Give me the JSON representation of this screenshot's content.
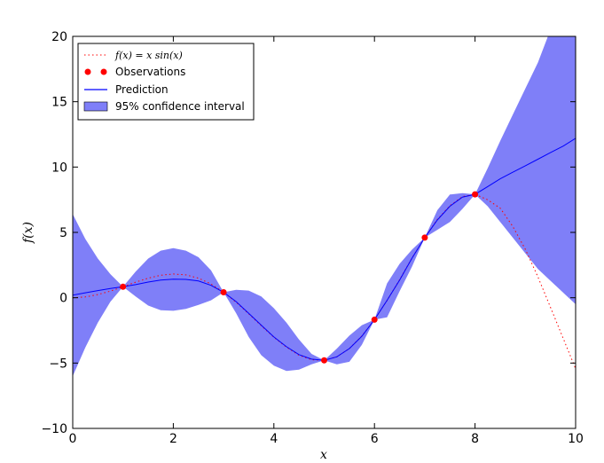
{
  "chart_data": {
    "type": "line",
    "title": "",
    "xlabel": "x",
    "ylabel": "f(x)",
    "xlim": [
      0,
      10
    ],
    "ylim": [
      -10,
      20
    ],
    "xticks": [
      0,
      2,
      4,
      6,
      8,
      10
    ],
    "yticks": [
      -10,
      -5,
      0,
      5,
      10,
      15,
      20
    ],
    "grid": false,
    "legend_position": "top-left",
    "colors": {
      "true_function": "#ff0000",
      "observations": "#ff0000",
      "prediction": "#0000ff",
      "confidence_fill": "#7f7ff8"
    },
    "series": [
      {
        "name": "f(x) = x sin(x)",
        "style": "dotted-red-line",
        "x": [
          0,
          0.25,
          0.5,
          0.75,
          1,
          1.25,
          1.5,
          1.75,
          2,
          2.25,
          2.5,
          2.75,
          3,
          3.25,
          3.5,
          3.75,
          4,
          4.25,
          4.5,
          4.75,
          5,
          5.25,
          5.5,
          5.75,
          6,
          6.25,
          6.5,
          6.75,
          7,
          7.25,
          7.5,
          7.75,
          8,
          8.25,
          8.5,
          8.75,
          9,
          9.25,
          9.5,
          9.75,
          10
        ],
        "y": [
          0,
          0.06,
          0.24,
          0.51,
          0.84,
          1.19,
          1.5,
          1.72,
          1.82,
          1.75,
          1.5,
          1.05,
          0.42,
          -0.35,
          -1.23,
          -2.15,
          -3.03,
          -3.78,
          -4.4,
          -4.75,
          -4.79,
          -4.52,
          -3.89,
          -2.92,
          -1.68,
          -0.21,
          1.39,
          3.06,
          4.6,
          6.0,
          7.04,
          7.74,
          7.91,
          7.5,
          6.85,
          5.46,
          3.71,
          1.59,
          -0.72,
          -3.08,
          -5.44
        ]
      },
      {
        "name": "Observations",
        "style": "red-dots",
        "x": [
          1,
          3,
          5,
          6,
          7,
          8
        ],
        "y": [
          0.84,
          0.42,
          -4.79,
          -1.68,
          4.6,
          7.91
        ]
      },
      {
        "name": "Prediction",
        "style": "blue-line",
        "x": [
          0,
          0.25,
          0.5,
          0.75,
          1,
          1.25,
          1.5,
          1.75,
          2,
          2.25,
          2.5,
          2.75,
          3,
          3.25,
          3.5,
          3.75,
          4,
          4.25,
          4.5,
          4.75,
          5,
          5.25,
          5.5,
          5.75,
          6,
          6.25,
          6.5,
          6.75,
          7,
          7.25,
          7.5,
          7.75,
          8,
          8.25,
          8.5,
          8.75,
          9,
          9.25,
          9.5,
          9.75,
          10
        ],
        "y": [
          0.2,
          0.38,
          0.55,
          0.71,
          0.84,
          1.0,
          1.2,
          1.35,
          1.42,
          1.4,
          1.28,
          0.95,
          0.42,
          -0.3,
          -1.2,
          -2.1,
          -3.0,
          -3.75,
          -4.35,
          -4.7,
          -4.79,
          -4.52,
          -3.89,
          -2.95,
          -1.68,
          -0.2,
          1.35,
          3.05,
          4.6,
          5.95,
          7.0,
          7.7,
          7.91,
          8.5,
          9.1,
          9.6,
          10.1,
          10.6,
          11.1,
          11.6,
          12.2
        ]
      },
      {
        "name": "95% confidence interval",
        "style": "blue-band",
        "x": [
          0,
          0.25,
          0.5,
          0.75,
          1,
          1.25,
          1.5,
          1.75,
          2,
          2.25,
          2.5,
          2.75,
          3,
          3.25,
          3.5,
          3.75,
          4,
          4.25,
          4.5,
          4.75,
          5,
          5.25,
          5.5,
          5.75,
          6,
          6.25,
          6.5,
          6.75,
          7,
          7.25,
          7.5,
          7.75,
          8,
          8.25,
          8.5,
          8.75,
          9,
          9.25,
          9.5,
          9.75,
          10
        ],
        "lower": [
          -6.0,
          -3.8,
          -1.9,
          -0.3,
          0.84,
          0.1,
          -0.6,
          -0.95,
          -1.0,
          -0.85,
          -0.55,
          -0.2,
          0.42,
          -1.2,
          -3.0,
          -4.4,
          -5.2,
          -5.6,
          -5.5,
          -5.1,
          -4.79,
          -5.1,
          -4.9,
          -3.6,
          -1.68,
          -1.5,
          0.5,
          2.4,
          4.6,
          5.2,
          5.8,
          6.8,
          7.91,
          7.0,
          5.8,
          4.6,
          3.4,
          2.2,
          1.3,
          0.4,
          -0.5
        ],
        "upper": [
          6.4,
          4.5,
          3.0,
          1.8,
          0.84,
          2.0,
          3.0,
          3.6,
          3.8,
          3.6,
          3.1,
          2.1,
          0.42,
          0.6,
          0.55,
          0.1,
          -0.8,
          -1.9,
          -3.2,
          -4.3,
          -4.79,
          -3.9,
          -2.9,
          -2.1,
          -1.68,
          1.1,
          2.6,
          3.7,
          4.6,
          6.7,
          7.9,
          8.0,
          7.91,
          9.9,
          12.0,
          14.0,
          16.0,
          18.0,
          20.5,
          23.0,
          25.0
        ]
      }
    ]
  },
  "legend": {
    "items": [
      {
        "label": "f(x) = x sin(x)",
        "kind": "dotted"
      },
      {
        "label": "Observations",
        "kind": "dots"
      },
      {
        "label": "Prediction",
        "kind": "line"
      },
      {
        "label": "95% confidence interval",
        "kind": "patch"
      }
    ]
  }
}
